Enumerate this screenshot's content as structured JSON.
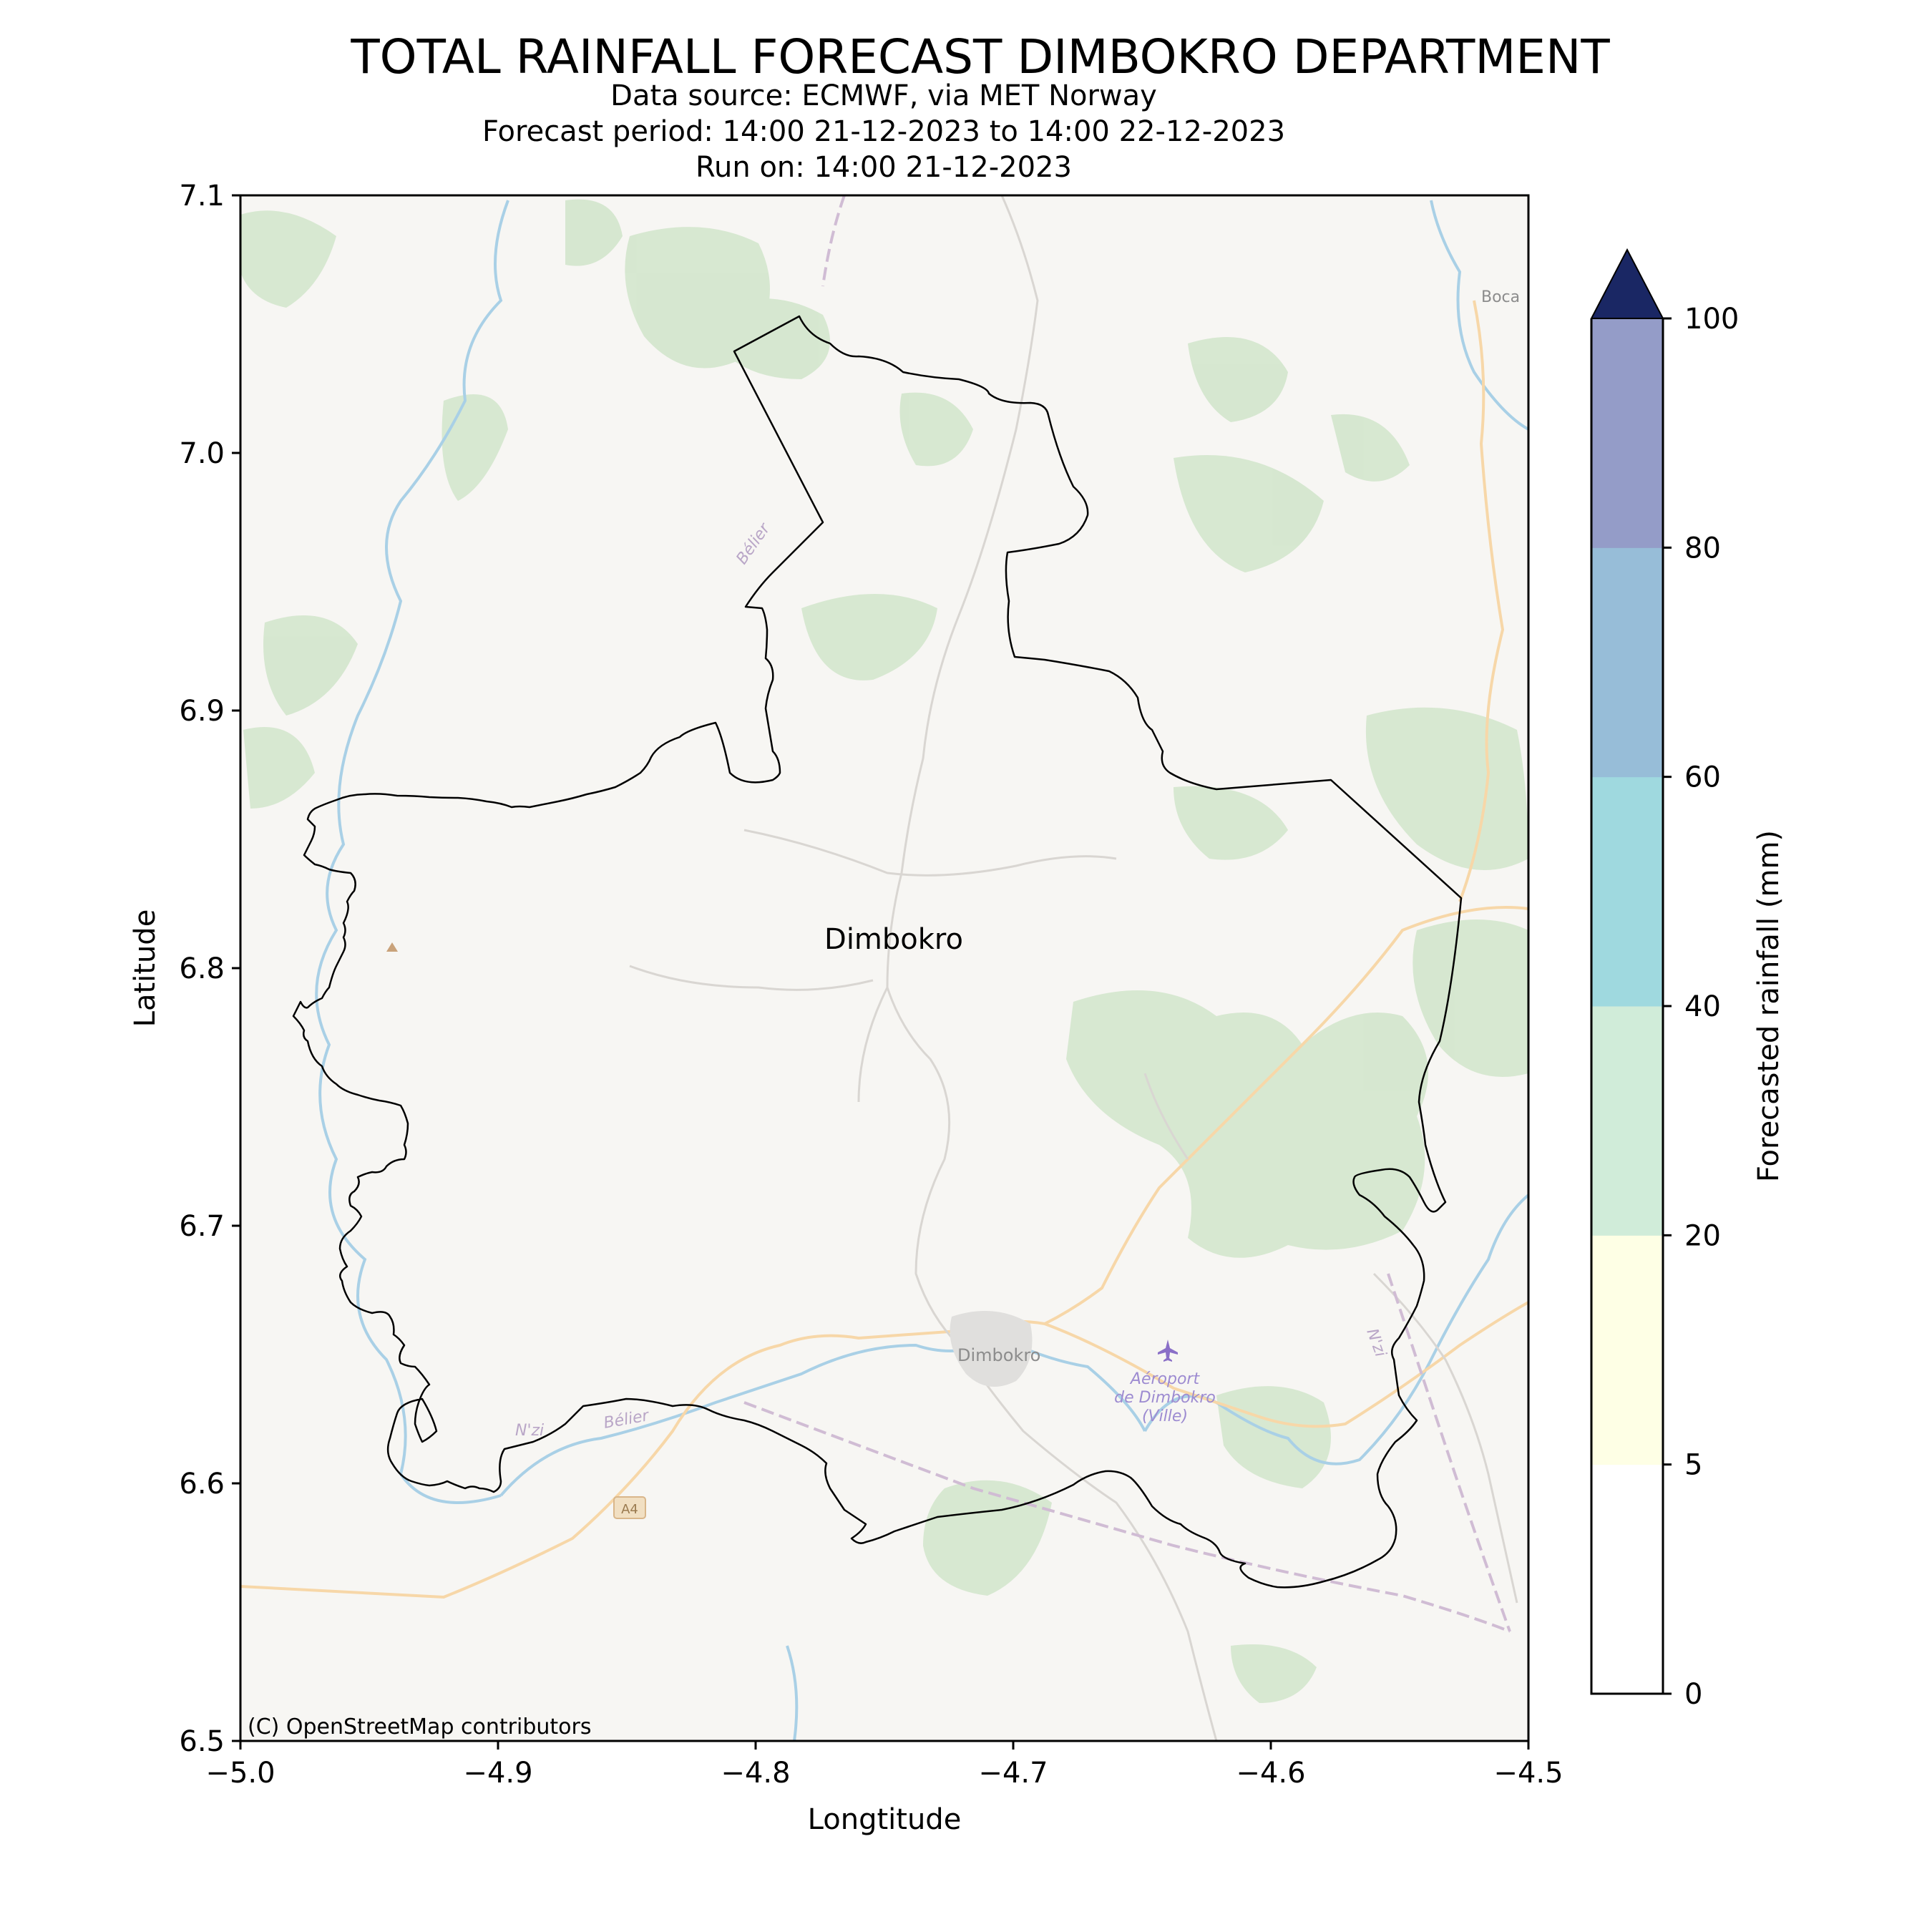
{
  "title": "TOTAL RAINFALL FORECAST DIMBOKRO DEPARTMENT",
  "subtitle_lines": [
    "Data source: ECMWF, via MET Norway",
    "Forecast period: 14:00 21-12-2023 to 14:00 22-12-2023",
    "Run on: 14:00 21-12-2023"
  ],
  "map": {
    "xlabel": "Longtitude",
    "ylabel": "Latitude",
    "xlim": [
      -5.0,
      -4.5
    ],
    "ylim": [
      6.5,
      7.1
    ],
    "xticks": [
      "−5.0",
      "−4.9",
      "−4.8",
      "−4.7",
      "−4.6",
      "−4.5"
    ],
    "yticks": [
      "6.5",
      "6.6",
      "6.7",
      "6.8",
      "6.9",
      "7.0",
      "7.1"
    ],
    "region_label": "Dimbokro",
    "attribution": "(C) OpenStreetMap contributors",
    "basemap_labels": [
      "Boca",
      "Dimbokro",
      "Aéroport",
      "de Dimbokro",
      "(Ville)",
      "N'zi",
      "Bélier",
      "Bélier",
      "A4",
      "N'zi"
    ],
    "rainfall_value_mm": 0,
    "colors": {
      "background": "#f7f6f3",
      "vegetation": "#d5e7cf",
      "river": "#a9d0e6",
      "road_major": "#f7d7a8",
      "road_minor": "#d9d6d2",
      "boundary": "#000000",
      "airport": "#8a6fc7"
    }
  },
  "colorbar": {
    "label": "Forecasted rainfall (mm)",
    "ticks": [
      "0",
      "5",
      "20",
      "40",
      "60",
      "80",
      "100"
    ],
    "bins": [
      {
        "from": 0,
        "to": 5,
        "color": "#ffffff"
      },
      {
        "from": 5,
        "to": 20,
        "color": "#feffe5"
      },
      {
        "from": 20,
        "to": 40,
        "color": "#d0ecd9"
      },
      {
        "from": 40,
        "to": 60,
        "color": "#9fd9df"
      },
      {
        "from": 60,
        "to": 80,
        "color": "#97bdd8"
      },
      {
        "from": 80,
        "to": 100,
        "color": "#949cc8"
      }
    ],
    "extend_color": "#1a2764"
  }
}
